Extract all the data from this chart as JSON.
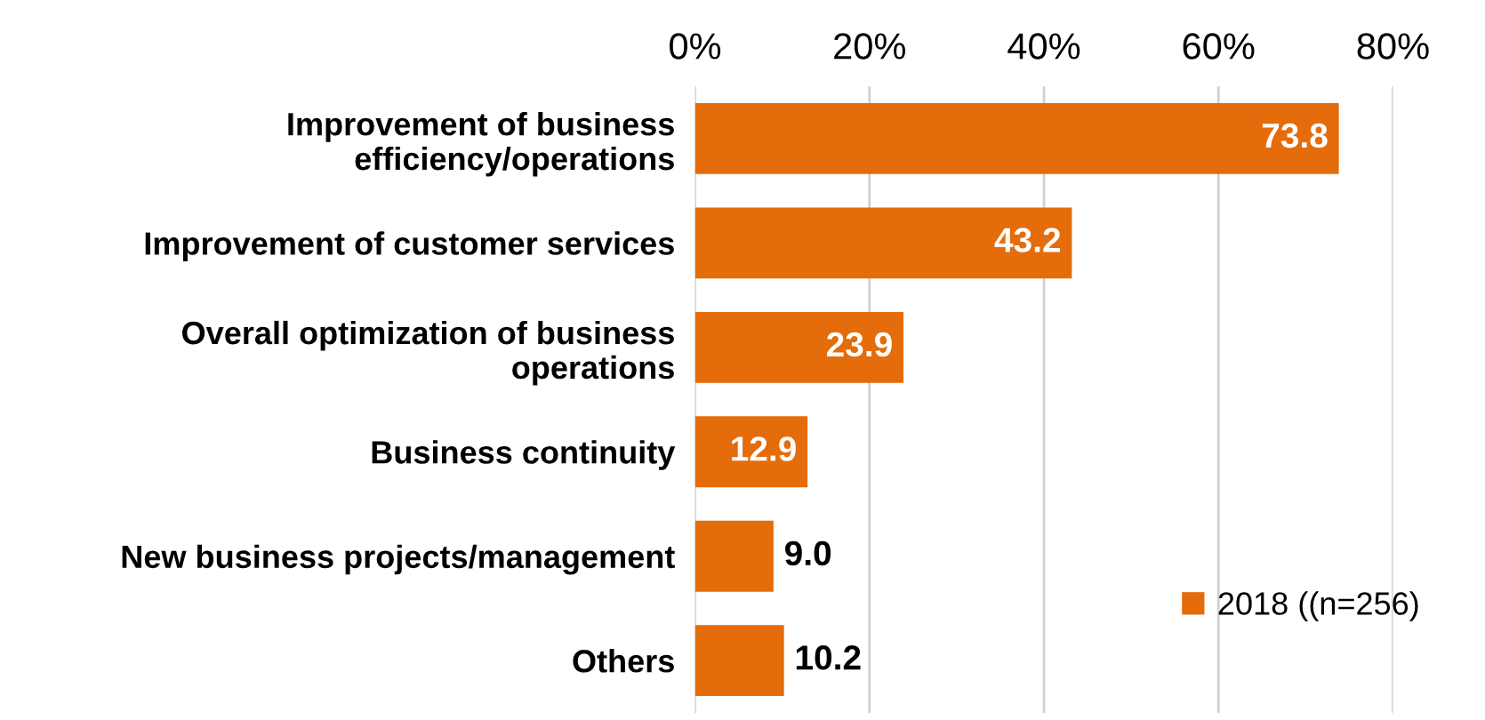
{
  "chart_data": {
    "type": "bar",
    "orientation": "horizontal",
    "categories": [
      "Improvement of business\nefficiency/operations",
      "Improvement of customer services",
      "Overall optimization of business\noperations",
      "Business continuity",
      "New business projects/management",
      "Others"
    ],
    "series": [
      {
        "name": "2018 ((n=256)",
        "color": "#e46c0a",
        "values": [
          73.8,
          43.2,
          23.9,
          12.9,
          9.0,
          10.2
        ],
        "value_labels": [
          "73.8",
          "43.2",
          "23.9",
          "12.9",
          "9.0",
          "10.2"
        ]
      }
    ],
    "xlim": [
      0,
      80
    ],
    "xticks": [
      {
        "value": 0,
        "label": "0%"
      },
      {
        "value": 20,
        "label": "20%"
      },
      {
        "value": 40,
        "label": "40%"
      },
      {
        "value": 60,
        "label": "60%"
      },
      {
        "value": 80,
        "label": "80%"
      }
    ],
    "grid": "x",
    "legend": "bottom right"
  }
}
